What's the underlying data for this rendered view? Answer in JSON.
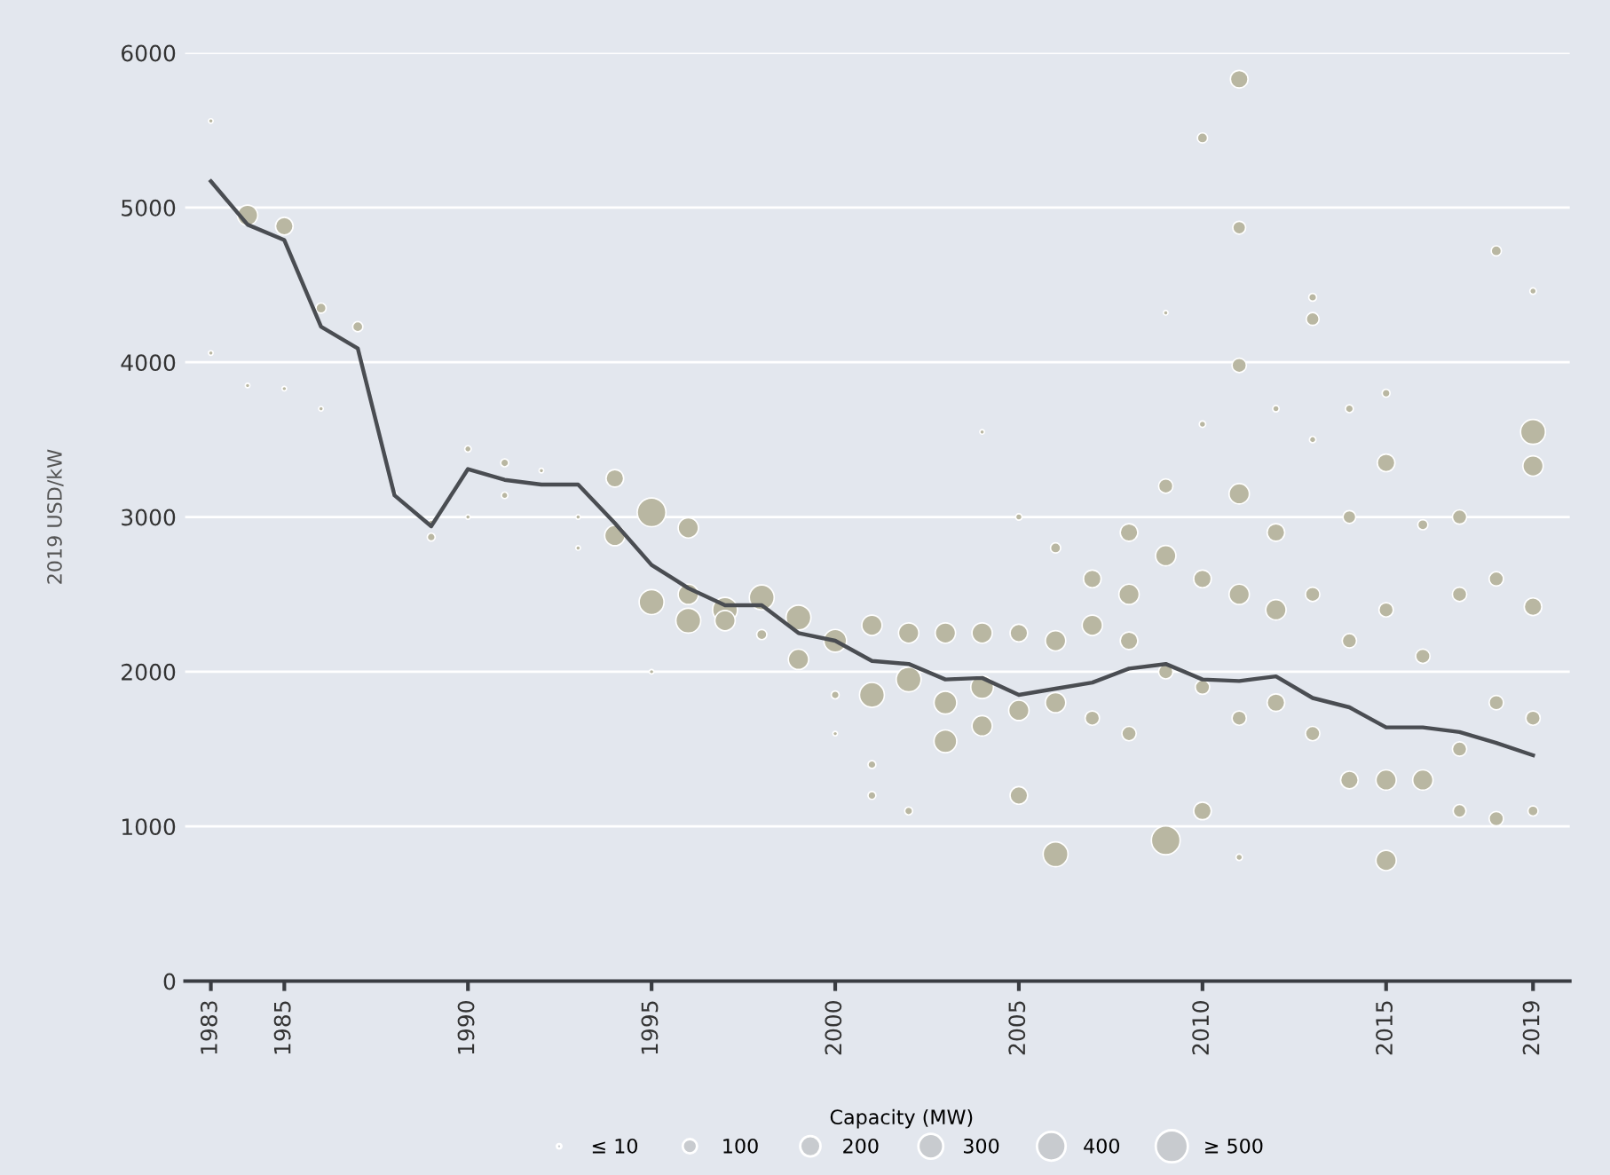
{
  "chart_data": {
    "type": "bubble",
    "ylabel": "2019 USD/kW",
    "legend_title": "Capacity (MW)",
    "grid": "y",
    "xlim": [
      1982.3,
      2020
    ],
    "xticks": [
      1983,
      1985,
      1990,
      1995,
      2000,
      2005,
      2010,
      2015,
      2019
    ],
    "ylim": [
      0,
      6000
    ],
    "yticks": [
      0,
      1000,
      2000,
      3000,
      4000,
      5000,
      6000
    ],
    "size_legend": [
      {
        "value": 10,
        "label": "≤ 10"
      },
      100,
      200,
      300,
      400,
      {
        "value": 500,
        "label": "≥ 500"
      }
    ],
    "series": [
      {
        "color": "#b9b7a2",
        "x": [
          1983,
          1983,
          1984,
          1984,
          1985,
          1985,
          1986,
          1986,
          1987,
          1988,
          1989,
          1989,
          1990,
          1990,
          1991,
          1991,
          1992,
          1993,
          1993,
          1994,
          1994,
          1995,
          1995,
          1995,
          1996,
          1996,
          1996,
          1997,
          1997,
          1998,
          1998,
          1999,
          1999,
          2000,
          2000,
          2000,
          2001,
          2001,
          2001,
          2001,
          2002,
          2002,
          2002,
          2003,
          2003,
          2003,
          2004,
          2004,
          2004,
          2004,
          2005,
          2005,
          2005,
          2005,
          2006,
          2006,
          2006,
          2006,
          2007,
          2007,
          2007,
          2008,
          2008,
          2008,
          2008,
          2009,
          2009,
          2009,
          2009,
          2009,
          2010,
          2010,
          2010,
          2010,
          2010,
          2011,
          2011,
          2011,
          2011,
          2011,
          2011,
          2011,
          2012,
          2012,
          2012,
          2012,
          2013,
          2013,
          2013,
          2013,
          2013,
          2014,
          2014,
          2014,
          2014,
          2015,
          2015,
          2015,
          2015,
          2015,
          2016,
          2016,
          2016,
          2017,
          2017,
          2017,
          2017,
          2018,
          2018,
          2018,
          2018,
          2019,
          2019,
          2019,
          2019,
          2019,
          2019
        ],
        "values": [
          5560,
          4060,
          4950,
          3850,
          4880,
          3830,
          4350,
          3700,
          4230,
          3150,
          2870,
          2960,
          3440,
          3000,
          3350,
          3140,
          3300,
          3000,
          2800,
          3250,
          2880,
          3030,
          2450,
          2000,
          2930,
          2500,
          2330,
          2400,
          2330,
          2480,
          2240,
          2350,
          2080,
          2200,
          1850,
          1600,
          2300,
          1850,
          1400,
          1200,
          2250,
          1950,
          1100,
          2250,
          1800,
          1550,
          2250,
          1900,
          1650,
          3550,
          2250,
          1750,
          1200,
          3000,
          2200,
          1800,
          820,
          2800,
          2600,
          2300,
          1700,
          2900,
          2500,
          2200,
          1600,
          3200,
          2750,
          2000,
          910,
          4320,
          5450,
          3600,
          2600,
          1900,
          1100,
          5830,
          4870,
          3980,
          3150,
          2500,
          1700,
          800,
          3700,
          2900,
          2400,
          1800,
          4420,
          4280,
          3500,
          2500,
          1600,
          3700,
          3000,
          2200,
          1300,
          3800,
          3350,
          2400,
          1300,
          780,
          2950,
          2100,
          1300,
          3000,
          2500,
          1500,
          1100,
          4720,
          2600,
          1800,
          1050,
          4460,
          3550,
          3330,
          2420,
          1700,
          1100
        ],
        "sizes": [
          10,
          10,
          200,
          10,
          150,
          10,
          50,
          10,
          50,
          10,
          30,
          20,
          20,
          10,
          30,
          20,
          10,
          10,
          10,
          150,
          200,
          400,
          300,
          10,
          200,
          200,
          300,
          300,
          200,
          300,
          50,
          300,
          200,
          250,
          30,
          10,
          200,
          300,
          30,
          30,
          200,
          300,
          30,
          200,
          250,
          250,
          200,
          250,
          200,
          10,
          150,
          200,
          150,
          20,
          200,
          200,
          300,
          50,
          150,
          200,
          100,
          150,
          200,
          150,
          100,
          100,
          200,
          100,
          400,
          10,
          50,
          20,
          150,
          100,
          150,
          150,
          80,
          100,
          200,
          200,
          100,
          20,
          20,
          150,
          200,
          150,
          30,
          80,
          20,
          100,
          100,
          30,
          80,
          100,
          150,
          30,
          150,
          100,
          200,
          200,
          50,
          100,
          200,
          100,
          100,
          100,
          80,
          50,
          100,
          100,
          100,
          20,
          300,
          200,
          150,
          100,
          50
        ]
      },
      {
        "type": "line",
        "color": "#4a4d52",
        "marker": "none",
        "line_style": "solid",
        "x": [
          1983,
          1984,
          1985,
          1986,
          1987,
          1988,
          1989,
          1990,
          1991,
          1992,
          1993,
          1994,
          1995,
          1996,
          1997,
          1998,
          1999,
          2000,
          2001,
          2002,
          2003,
          2004,
          2005,
          2006,
          2007,
          2008,
          2009,
          2010,
          2011,
          2012,
          2013,
          2014,
          2015,
          2016,
          2017,
          2018,
          2019
        ],
        "values": [
          5170,
          4890,
          4790,
          4230,
          4090,
          3140,
          2940,
          3310,
          3240,
          3210,
          3210,
          2960,
          2690,
          2540,
          2430,
          2430,
          2250,
          2200,
          2070,
          2050,
          1950,
          1960,
          1850,
          1890,
          1930,
          2020,
          2050,
          1950,
          1940,
          1970,
          1830,
          1770,
          1640,
          1640,
          1610,
          1540,
          1460
        ]
      }
    ]
  }
}
